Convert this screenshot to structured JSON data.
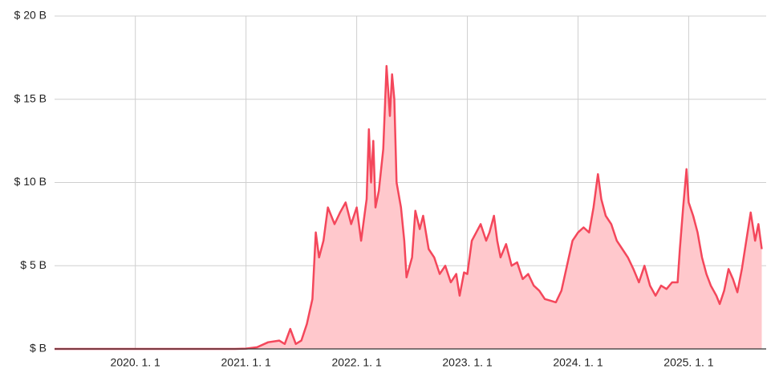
{
  "chart_data": {
    "type": "area",
    "x": [
      2019.27,
      2020.9,
      2021.0,
      2021.1,
      2021.2,
      2021.3,
      2021.35,
      2021.4,
      2021.45,
      2021.5,
      2021.55,
      2021.6,
      2021.63,
      2021.66,
      2021.7,
      2021.74,
      2021.8,
      2021.85,
      2021.9,
      2021.95,
      2022.0,
      2022.04,
      2022.08,
      2022.09,
      2022.11,
      2022.13,
      2022.15,
      2022.17,
      2022.2,
      2022.24,
      2022.27,
      2022.3,
      2022.32,
      2022.34,
      2022.36,
      2022.4,
      2022.43,
      2022.45,
      2022.5,
      2022.53,
      2022.57,
      2022.6,
      2022.65,
      2022.7,
      2022.75,
      2022.8,
      2022.85,
      2022.9,
      2022.93,
      2022.97,
      2023.0,
      2023.04,
      2023.08,
      2023.12,
      2023.17,
      2023.2,
      2023.24,
      2023.27,
      2023.3,
      2023.35,
      2023.4,
      2023.45,
      2023.5,
      2023.55,
      2023.6,
      2023.65,
      2023.7,
      2023.75,
      2023.8,
      2023.85,
      2023.9,
      2023.95,
      2024.0,
      2024.05,
      2024.1,
      2024.14,
      2024.18,
      2024.21,
      2024.25,
      2024.3,
      2024.35,
      2024.4,
      2024.45,
      2024.5,
      2024.55,
      2024.6,
      2024.65,
      2024.7,
      2024.75,
      2024.8,
      2024.85,
      2024.9,
      2024.92,
      2024.95,
      2024.98,
      2025.0,
      2025.04,
      2025.08,
      2025.12,
      2025.16,
      2025.2,
      2025.25,
      2025.28,
      2025.32,
      2025.36,
      2025.4,
      2025.44,
      2025.48,
      2025.52,
      2025.56,
      2025.6,
      2025.63,
      2025.66
    ],
    "values": [
      0,
      0,
      0.02,
      0.1,
      0.4,
      0.5,
      0.3,
      1.2,
      0.3,
      0.5,
      1.5,
      3,
      7,
      5.5,
      6.5,
      8.5,
      7.5,
      8.2,
      8.8,
      7.5,
      8.5,
      6.5,
      8.5,
      9,
      13.2,
      10,
      12.5,
      8.5,
      9.5,
      12,
      17,
      14,
      16.5,
      15,
      10,
      8.5,
      6.5,
      4.3,
      5.5,
      8.3,
      7.2,
      8,
      6,
      5.5,
      4.5,
      5,
      4,
      4.5,
      3.2,
      4.6,
      4.5,
      6.5,
      7,
      7.5,
      6.5,
      7,
      8,
      6.5,
      5.5,
      6.3,
      5,
      5.2,
      4.2,
      4.5,
      3.8,
      3.5,
      3,
      2.9,
      2.8,
      3.5,
      5,
      6.5,
      7,
      7.3,
      7,
      8.5,
      10.5,
      9,
      8,
      7.5,
      6.5,
      6,
      5.5,
      4.8,
      4,
      5,
      3.8,
      3.2,
      3.8,
      3.6,
      4,
      4,
      6,
      8.5,
      10.8,
      8.8,
      8,
      7,
      5.5,
      4.5,
      3.8,
      3.2,
      2.7,
      3.5,
      4.8,
      4.2,
      3.4,
      4.8,
      6.5,
      8.2,
      6.5,
      7.5,
      6
    ],
    "color": "#f4475b",
    "fill_color": "#ffc8cc",
    "xlim": [
      2019.27,
      2025.7
    ],
    "xticks": [
      {
        "value": 2020,
        "label": "2020. 1. 1"
      },
      {
        "value": 2021,
        "label": "2021. 1. 1"
      },
      {
        "value": 2022,
        "label": "2022. 1. 1"
      },
      {
        "value": 2023,
        "label": "2023. 1. 1"
      },
      {
        "value": 2024,
        "label": "2024. 1. 1"
      },
      {
        "value": 2025,
        "label": "2025. 1. 1"
      }
    ],
    "ylim": [
      0,
      20
    ],
    "yticks": [
      {
        "value": 0,
        "label": "$  B"
      },
      {
        "value": 5,
        "label": "$ 5 B"
      },
      {
        "value": 10,
        "label": "$ 10 B"
      },
      {
        "value": 15,
        "label": "$ 15 B"
      },
      {
        "value": 20,
        "label": "$ 20 B"
      }
    ],
    "grid": true
  }
}
